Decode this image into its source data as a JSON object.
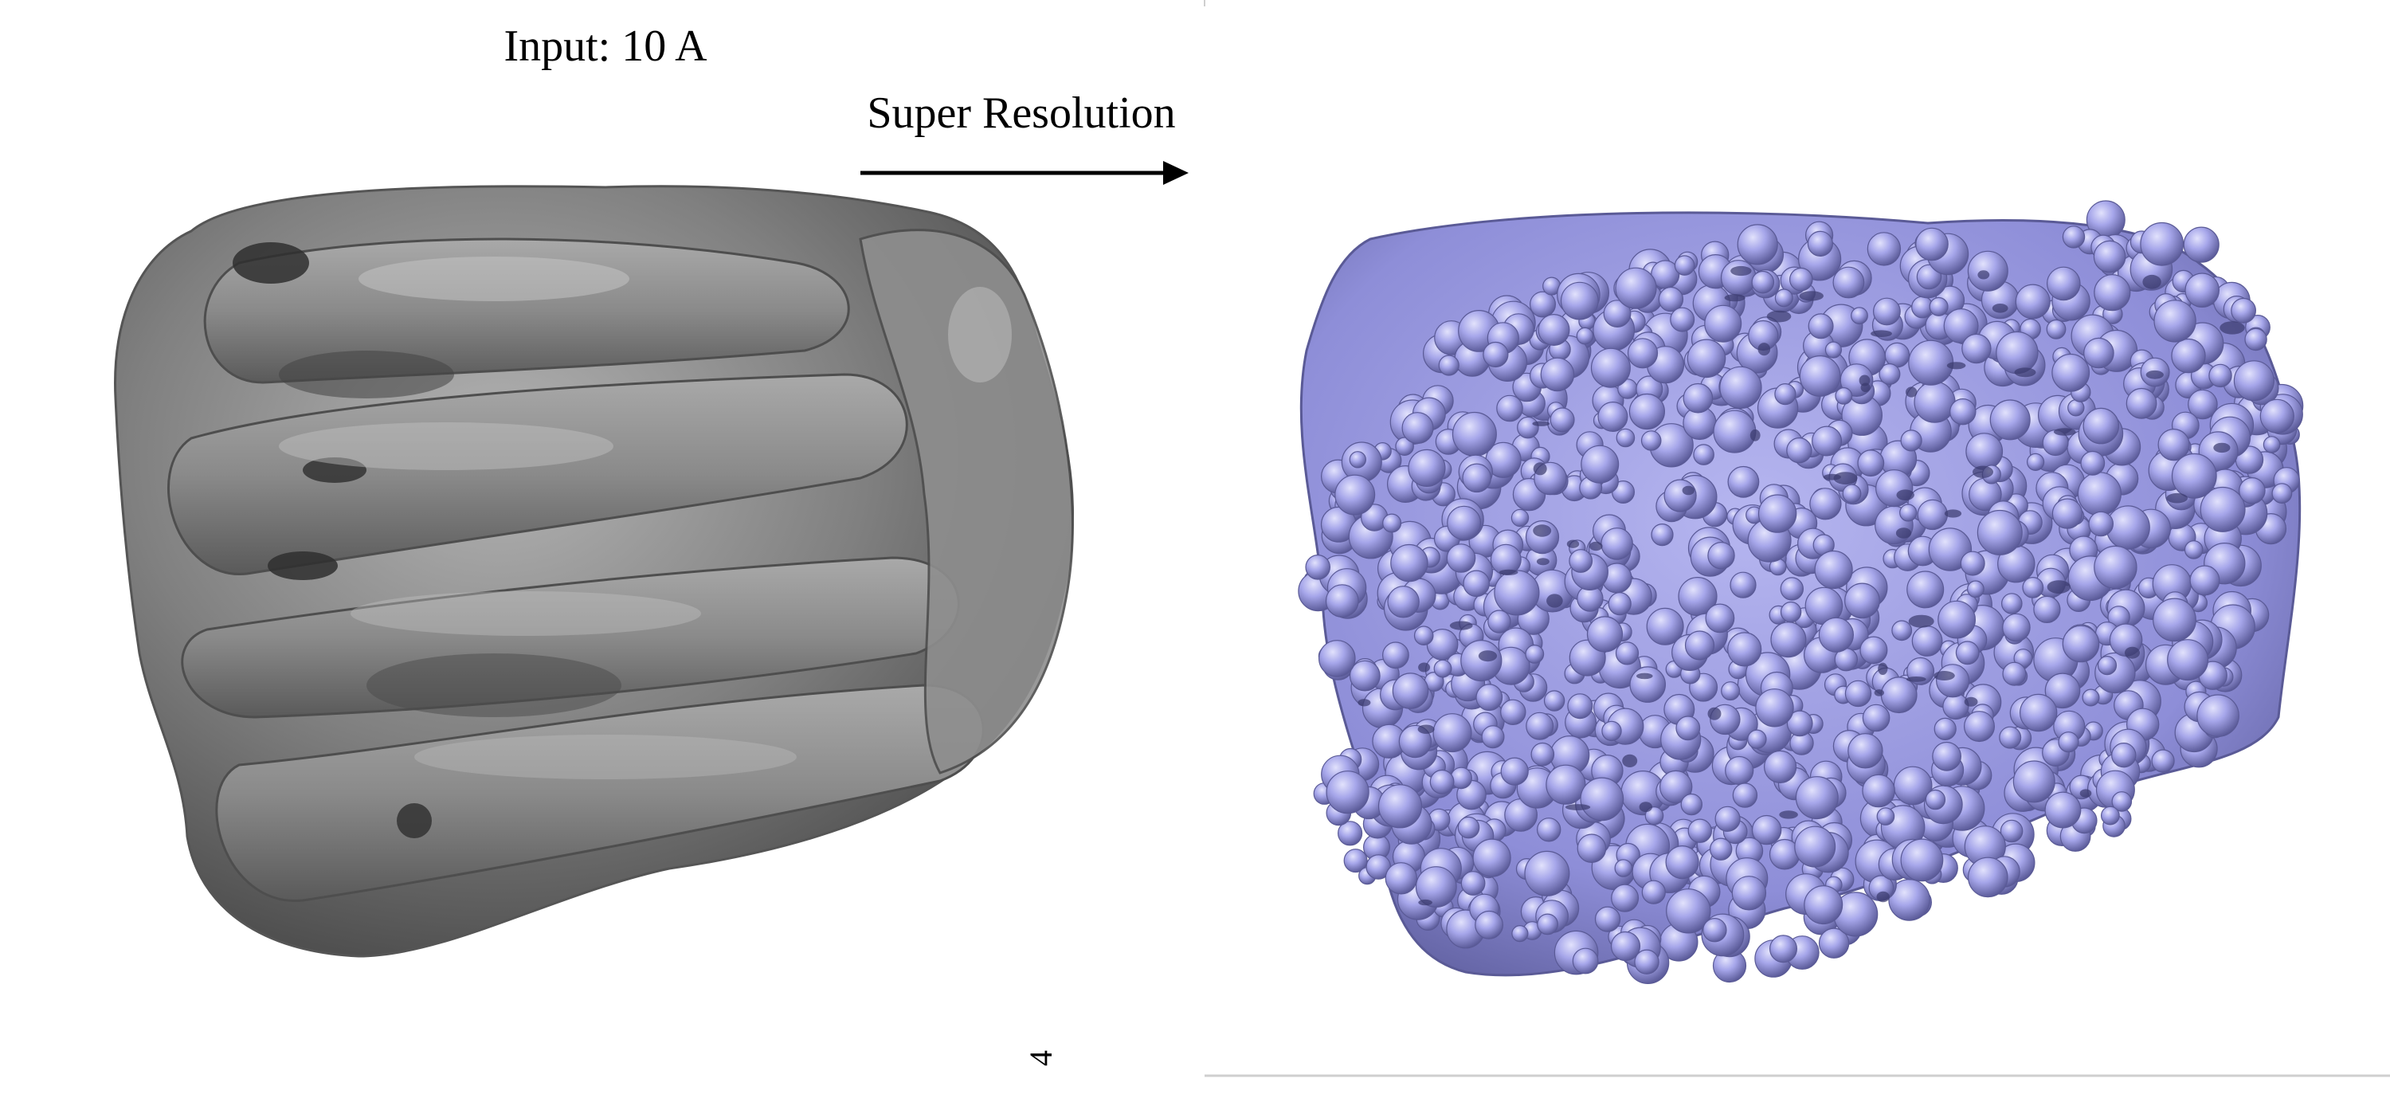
{
  "input_label": "Input: 10 A",
  "arrow_label": "Super Resolution",
  "page_number": "4",
  "colors": {
    "input_map": "#7a7a7a",
    "input_map_highlight": "#a8a8a8",
    "input_map_shadow": "#3c3c3c",
    "output_map": "#9a9ae6",
    "output_map_highlight": "#c9c9f7",
    "output_map_shadow": "#4c4c8a",
    "text": "#000000",
    "divider": "#cfcfcf"
  },
  "panels": [
    {
      "name": "input-density-map",
      "description_icon": "low-resolution-density-icon"
    },
    {
      "name": "output-density-map",
      "description_icon": "high-resolution-density-icon"
    }
  ]
}
